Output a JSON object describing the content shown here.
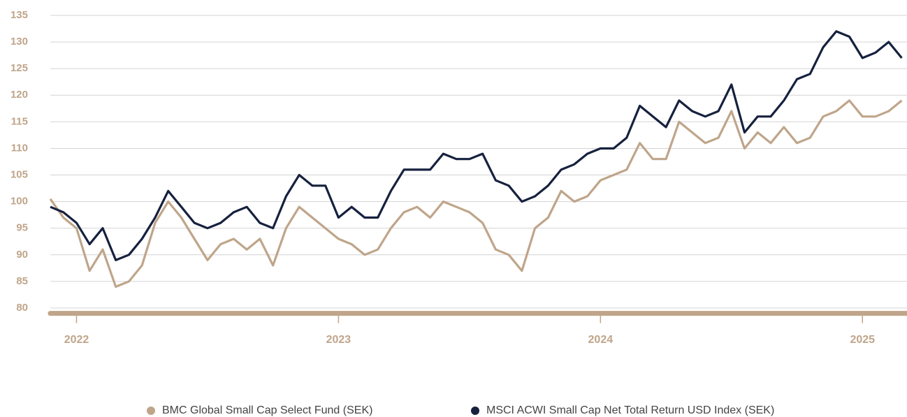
{
  "chart_data": {
    "type": "line",
    "x": [
      2021.9,
      2021.95,
      2022.0,
      2022.05,
      2022.1,
      2022.15,
      2022.2,
      2022.25,
      2022.3,
      2022.35,
      2022.4,
      2022.45,
      2022.5,
      2022.55,
      2022.6,
      2022.65,
      2022.7,
      2022.75,
      2022.8,
      2022.85,
      2022.9,
      2022.95,
      2023.0,
      2023.05,
      2023.1,
      2023.15,
      2023.2,
      2023.25,
      2023.3,
      2023.35,
      2023.4,
      2023.45,
      2023.5,
      2023.55,
      2023.6,
      2023.65,
      2023.7,
      2023.75,
      2023.8,
      2023.85,
      2023.9,
      2023.95,
      2024.0,
      2024.05,
      2024.1,
      2024.15,
      2024.2,
      2024.25,
      2024.3,
      2024.35,
      2024.4,
      2024.45,
      2024.5,
      2024.55,
      2024.6,
      2024.65,
      2024.7,
      2024.75,
      2024.8,
      2024.85,
      2024.9,
      2024.95,
      2025.0,
      2025.05,
      2025.1,
      2025.15
    ],
    "series": [
      {
        "name": "BMC Global Small Cap Select Fund (SEK)",
        "color": "#bfa58a",
        "values": [
          100.5,
          97,
          95,
          87,
          91,
          84,
          85,
          88,
          96,
          100,
          97,
          93,
          89,
          92,
          93,
          91,
          93,
          88,
          95,
          99,
          97,
          95,
          93,
          92,
          90,
          91,
          95,
          98,
          99,
          97,
          100,
          99,
          98,
          96,
          91,
          90,
          87,
          95,
          97,
          102,
          100,
          101,
          104,
          105,
          106,
          111,
          108,
          108,
          115,
          113,
          111,
          112,
          117,
          110,
          113,
          111,
          114,
          111,
          112,
          116,
          117,
          119,
          116,
          116,
          117,
          119
        ]
      },
      {
        "name": "MSCI ACWI Small Cap Net Total Return USD Index (SEK)",
        "color": "#16213e",
        "values": [
          99,
          98,
          96,
          92,
          95,
          89,
          90,
          93,
          97,
          102,
          99,
          96,
          95,
          96,
          98,
          99,
          96,
          95,
          101,
          105,
          103,
          103,
          97,
          99,
          97,
          97,
          102,
          106,
          106,
          106,
          109,
          108,
          108,
          109,
          104,
          103,
          100,
          101,
          103,
          106,
          107,
          109,
          110,
          110,
          112,
          118,
          116,
          114,
          119,
          117,
          116,
          117,
          122,
          113,
          116,
          116,
          119,
          123,
          124,
          129,
          132,
          131,
          127,
          128,
          130,
          127
        ]
      }
    ],
    "xlim": [
      2021.9,
      2025.17
    ],
    "xticks": [
      2022,
      2023,
      2024,
      2025
    ],
    "ylim": [
      79,
      136
    ],
    "yticks": [
      80,
      85,
      90,
      95,
      100,
      105,
      110,
      115,
      120,
      125,
      130,
      135
    ],
    "grid": true,
    "legend": "bottom"
  }
}
